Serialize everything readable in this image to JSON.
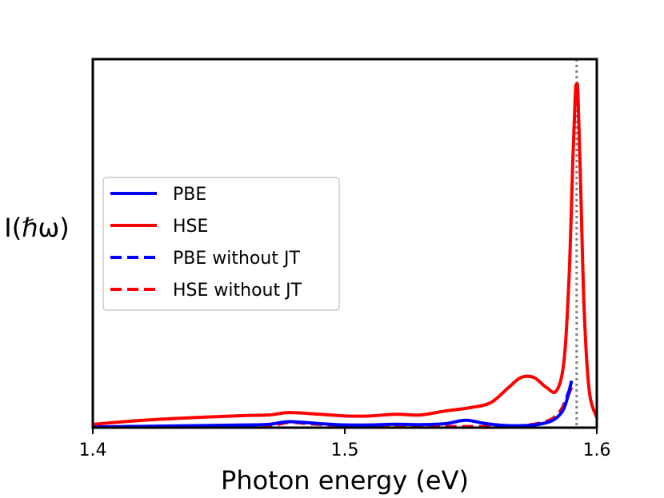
{
  "chart_data": {
    "type": "line",
    "title": "",
    "xlabel": "Photon energy (eV)",
    "ylabel": "I(ℏω)",
    "xlim": [
      1.4,
      1.6
    ],
    "ylim": [
      0,
      1.1
    ],
    "x_ticks": [
      "1.4",
      "1.5",
      "1.6"
    ],
    "y_ticks": [],
    "grid": false,
    "legend_position": "center-left",
    "reference_line": {
      "x": 1.592,
      "style": "dotted",
      "color": "#808080"
    },
    "series": [
      {
        "name": "PBE",
        "color": "#0000ff",
        "style": "solid",
        "x": [
          1.4,
          1.42,
          1.44,
          1.46,
          1.47,
          1.478,
          1.49,
          1.5,
          1.51,
          1.52,
          1.53,
          1.54,
          1.548,
          1.556,
          1.565,
          1.575,
          1.582,
          1.586,
          1.588,
          1.59
        ],
        "y": [
          0.002,
          0.004,
          0.006,
          0.008,
          0.01,
          0.018,
          0.012,
          0.008,
          0.008,
          0.01,
          0.009,
          0.012,
          0.022,
          0.012,
          0.006,
          0.008,
          0.02,
          0.045,
          0.08,
          0.14
        ]
      },
      {
        "name": "HSE",
        "color": "#ff0000",
        "style": "solid",
        "x": [
          1.4,
          1.42,
          1.44,
          1.46,
          1.47,
          1.478,
          1.49,
          1.5,
          1.51,
          1.52,
          1.53,
          1.54,
          1.55,
          1.558,
          1.565,
          1.57,
          1.575,
          1.58,
          1.584,
          1.587,
          1.589,
          1.5905,
          1.5915,
          1.592,
          1.5925,
          1.5935,
          1.595,
          1.597,
          1.6
        ],
        "y": [
          0.01,
          0.022,
          0.03,
          0.036,
          0.038,
          0.045,
          0.04,
          0.035,
          0.035,
          0.04,
          0.038,
          0.05,
          0.06,
          0.075,
          0.12,
          0.15,
          0.15,
          0.12,
          0.11,
          0.2,
          0.45,
          0.8,
          1.0,
          1.02,
          1.0,
          0.75,
          0.35,
          0.11,
          0.03
        ]
      },
      {
        "name": "PBE without JT",
        "color": "#0000ff",
        "style": "dashed",
        "x": [
          1.4,
          1.44,
          1.47,
          1.478,
          1.49,
          1.51,
          1.53,
          1.55,
          1.565,
          1.575,
          1.582,
          1.586,
          1.589
        ],
        "y": [
          0.002,
          0.004,
          0.008,
          0.016,
          0.01,
          0.006,
          0.004,
          0.003,
          0.004,
          0.01,
          0.025,
          0.055,
          0.11
        ]
      },
      {
        "name": "HSE without JT",
        "color": "#ff0000",
        "style": "dashed",
        "x": [
          1.4,
          1.44,
          1.47,
          1.478,
          1.49,
          1.51,
          1.53,
          1.55,
          1.565,
          1.575,
          1.582,
          1.586,
          1.59
        ],
        "y": [
          0.002,
          0.004,
          0.008,
          0.016,
          0.01,
          0.006,
          0.004,
          0.003,
          0.004,
          0.01,
          0.025,
          0.055,
          0.12
        ]
      }
    ]
  }
}
